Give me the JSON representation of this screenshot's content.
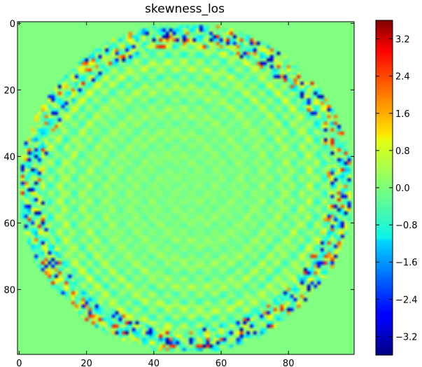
{
  "chart_data": {
    "type": "heatmap",
    "title": "skewness_los",
    "grid_size": [
      100,
      100
    ],
    "xlim": [
      0,
      99
    ],
    "ylim": [
      0,
      99
    ],
    "x_ticks": [
      0,
      20,
      40,
      60,
      80
    ],
    "y_ticks": [
      0,
      20,
      40,
      60,
      80
    ],
    "x_tick_labels": [
      "0",
      "20",
      "40",
      "60",
      "80"
    ],
    "y_tick_labels": [
      "0",
      "20",
      "40",
      "60",
      "80"
    ],
    "y_axis_inverted": true,
    "colormap": "jet",
    "vmin": -3.6,
    "vmax": 3.6,
    "colorbar": {
      "ticks": [
        3.2,
        2.4,
        1.6,
        0.8,
        0.0,
        -0.8,
        -1.6,
        -2.4,
        -3.2
      ],
      "tick_labels": [
        "3.2",
        "2.4",
        "1.6",
        "0.8",
        "0.0",
        "−0.8",
        "−1.6",
        "−2.4",
        "−3.2"
      ]
    },
    "background_value": 0.0,
    "disk": {
      "center": [
        49.5,
        49.5
      ],
      "radius": 49.5
    }
  }
}
